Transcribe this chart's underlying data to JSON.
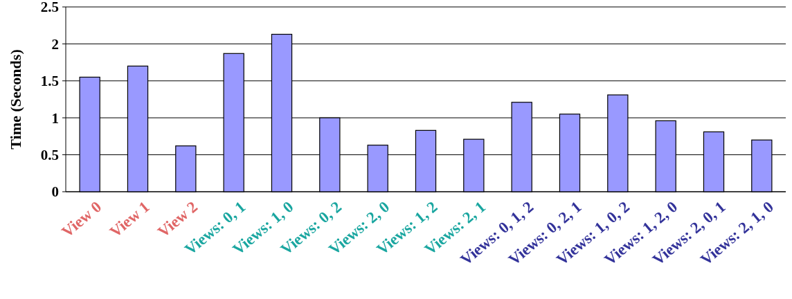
{
  "chart_data": {
    "type": "bar",
    "ylabel": "Time (Seconds)",
    "categories": [
      "View 0",
      "View 1",
      "View 2",
      "Views: 0, 1",
      "Views: 1, 0",
      "Views: 0, 2",
      "Views: 2, 0",
      "Views: 1, 2",
      "Views: 2, 1",
      "Views: 0, 1, 2",
      "Views: 0, 2, 1",
      "Views: 1, 0, 2",
      "Views: 1, 2, 0",
      "Views: 2, 0, 1",
      "Views: 2, 1, 0"
    ],
    "values": [
      1.55,
      1.7,
      0.62,
      1.87,
      2.13,
      1.0,
      0.63,
      0.83,
      0.71,
      1.21,
      1.05,
      1.31,
      0.96,
      0.81,
      0.7
    ],
    "color": "#9999ff",
    "ylim": [
      0,
      2.5
    ],
    "yticks": [
      0,
      0.5,
      1,
      1.5,
      2,
      2.5
    ],
    "grid": "y"
  }
}
